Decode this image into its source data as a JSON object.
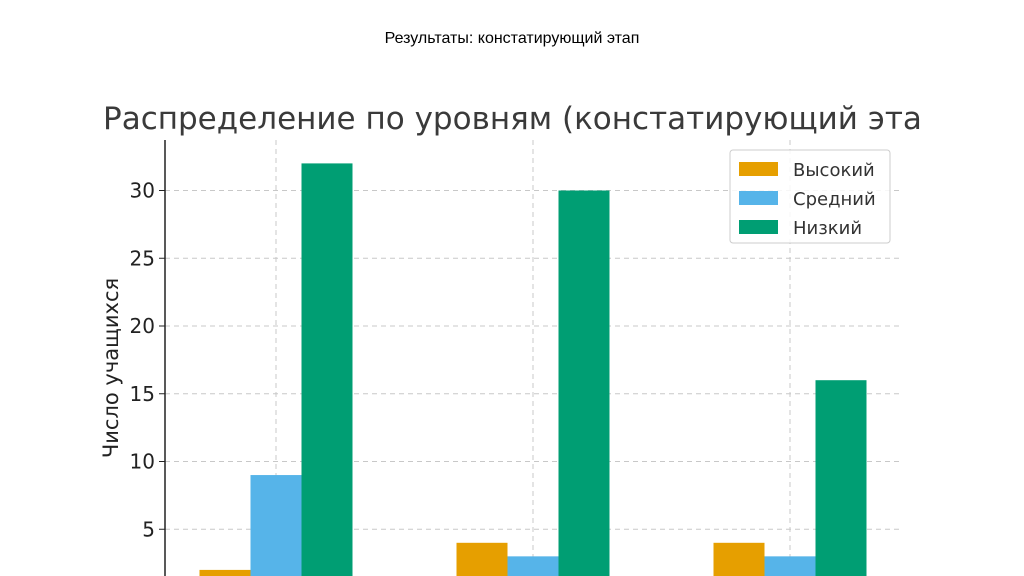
{
  "slide_title": "Результаты: констатирующий этап",
  "chart_data": {
    "type": "bar",
    "title": "Распределение по уровням (констатирующий этап)",
    "ylabel": "Число учащихся",
    "xlabel": "",
    "categories": [
      "",
      "",
      ""
    ],
    "series": [
      {
        "name": "Высокий",
        "color": "#E69F00",
        "values": [
          2,
          4,
          4
        ]
      },
      {
        "name": "Средний",
        "color": "#56B4E9",
        "values": [
          9,
          3,
          3
        ]
      },
      {
        "name": "Низкий",
        "color": "#009E73",
        "values": [
          32,
          30,
          16
        ]
      }
    ],
    "yticks": [
      5,
      10,
      15,
      20,
      25,
      30
    ],
    "grid": true,
    "legend_position": "top-right"
  }
}
